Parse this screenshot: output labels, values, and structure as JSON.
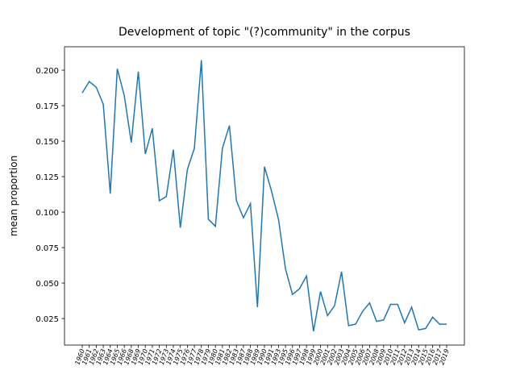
{
  "chart_data": {
    "type": "line",
    "title": "Development of topic \"(?)community\" in the corpus",
    "y_label": "mean proportion",
    "categories": [
      "1960",
      "1961",
      "1962",
      "1963",
      "1964",
      "1965",
      "1966",
      "1968",
      "1969",
      "1970",
      "1971",
      "1972",
      "1973",
      "1974",
      "1975",
      "1976",
      "1977",
      "1978",
      "1979",
      "1980",
      "1981",
      "1982",
      "1983",
      "1987",
      "1988",
      "1989",
      "1990",
      "1991",
      "1993",
      "1995",
      "1996",
      "1997",
      "1998",
      "1999",
      "2000",
      "2001",
      "2002",
      "2003",
      "2004",
      "2005",
      "2006",
      "2007",
      "2008",
      "2009",
      "2010",
      "2011",
      "2012",
      "2013",
      "2014",
      "2015",
      "2016",
      "2017",
      "2019"
    ],
    "values": [
      0.184,
      0.192,
      0.188,
      0.176,
      0.113,
      0.201,
      0.182,
      0.149,
      0.199,
      0.141,
      0.159,
      0.108,
      0.111,
      0.144,
      0.089,
      0.13,
      0.145,
      0.207,
      0.095,
      0.09,
      0.145,
      0.161,
      0.108,
      0.096,
      0.106,
      0.033,
      0.132,
      0.115,
      0.095,
      0.06,
      0.042,
      0.046,
      0.055,
      0.016,
      0.044,
      0.027,
      0.034,
      0.058,
      0.02,
      0.021,
      0.03,
      0.036,
      0.023,
      0.024,
      0.035,
      0.035,
      0.022,
      0.033,
      0.017,
      0.018,
      0.026,
      0.021,
      0.021
    ],
    "color": "#1f77b4",
    "ylim": [
      0.0063,
      0.2165
    ],
    "yticks": [
      {
        "value": 0.025,
        "label": "0.025"
      },
      {
        "value": 0.05,
        "label": "0.050"
      },
      {
        "value": 0.075,
        "label": "0.075"
      },
      {
        "value": 0.1,
        "label": "0.100"
      },
      {
        "value": 0.125,
        "label": "0.125"
      },
      {
        "value": 0.15,
        "label": "0.150"
      },
      {
        "value": 0.175,
        "label": "0.175"
      },
      {
        "value": 0.2,
        "label": "0.200"
      }
    ]
  }
}
